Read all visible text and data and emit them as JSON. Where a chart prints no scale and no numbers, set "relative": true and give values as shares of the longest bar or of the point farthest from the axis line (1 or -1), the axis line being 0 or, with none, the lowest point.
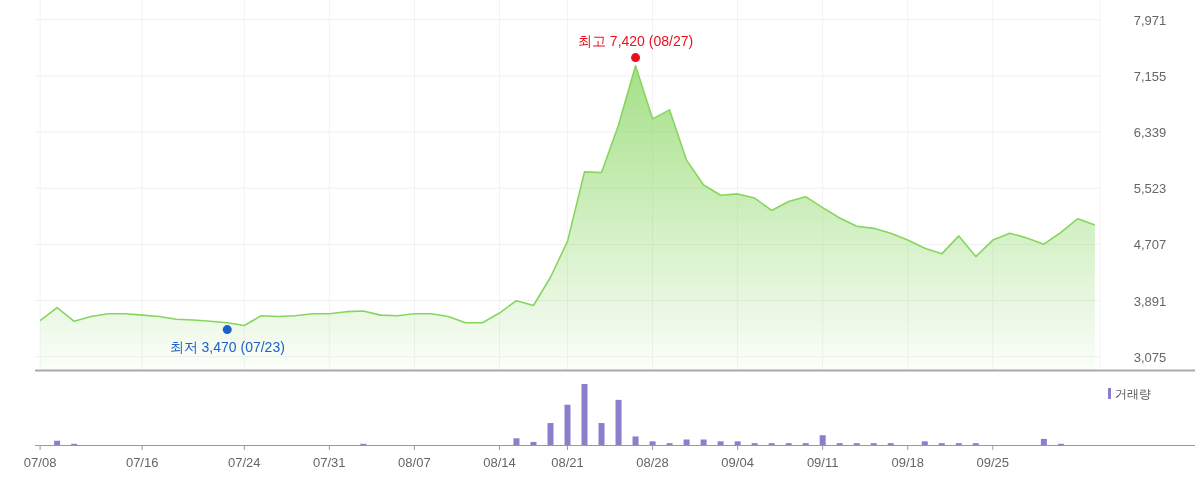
{
  "chart_data": [
    {
      "type": "area",
      "categories": [
        null,
        null,
        null,
        null,
        null,
        null,
        null,
        null,
        null,
        null,
        null,
        null,
        null,
        null,
        null,
        null,
        null,
        null,
        null,
        null,
        null,
        null,
        null,
        null,
        null,
        null,
        null,
        null,
        null,
        null,
        null,
        null,
        null,
        null,
        null,
        null,
        null,
        null,
        null,
        null,
        null,
        null,
        null,
        null,
        null,
        null,
        null,
        null,
        null,
        null,
        null,
        null,
        null,
        null,
        null,
        null,
        null,
        null,
        null,
        null,
        null,
        null,
        null
      ],
      "series": [
        {
          "color": "#86d65e",
          "values": [
            3600,
            3790,
            3590,
            3660,
            3700,
            3700,
            3680,
            3660,
            3620,
            3610,
            3590,
            3570,
            3530,
            3670,
            3660,
            3670,
            3700,
            3700,
            3730,
            3740,
            3680,
            3670,
            3700,
            3700,
            3660,
            3570,
            3570,
            3710,
            3890,
            3820,
            4230,
            4750,
            5760,
            5750,
            6440,
            7300,
            6530,
            6660,
            5930,
            5570,
            5420,
            5440,
            5380,
            5200,
            5330,
            5400,
            5240,
            5090,
            4970,
            4940,
            4870,
            4770,
            4650,
            4570,
            4830,
            4530,
            4770,
            4870,
            4800,
            4710,
            4880,
            5080,
            4990
          ]
        },
        {
          "type": "scatter",
          "color": "#1f5fc8",
          "values": [
            null,
            null,
            null,
            null,
            null,
            null,
            null,
            null,
            null,
            null,
            null,
            3470,
            null,
            null,
            null,
            null,
            null,
            null,
            null,
            null,
            null,
            null,
            null,
            null,
            null,
            null,
            null,
            null,
            null,
            null,
            null,
            null,
            null,
            null,
            null,
            null,
            null,
            null,
            null,
            null,
            null,
            null,
            null,
            null,
            null,
            null,
            null,
            null,
            null,
            null,
            null,
            null,
            null,
            null,
            null,
            null,
            null,
            null,
            null,
            null,
            null,
            null,
            null
          ]
        },
        {
          "type": "scatter",
          "color": "#e8101e",
          "values": [
            null,
            null,
            null,
            null,
            null,
            null,
            null,
            null,
            null,
            null,
            null,
            null,
            null,
            null,
            null,
            null,
            null,
            null,
            null,
            null,
            null,
            null,
            null,
            null,
            null,
            null,
            null,
            null,
            null,
            null,
            null,
            null,
            null,
            null,
            null,
            7420,
            null,
            null,
            null,
            null,
            null,
            null,
            null,
            null,
            null,
            null,
            null,
            null,
            null,
            null,
            null,
            null,
            null,
            null,
            null,
            null,
            null,
            null,
            null,
            null,
            null,
            null,
            null
          ]
        }
      ],
      "ylim": [
        2883,
        8256
      ],
      "yticks": [
        {
          "value": 3075,
          "label": "3,075"
        },
        {
          "value": 3891,
          "label": "3,891"
        },
        {
          "value": 4707,
          "label": "4,707"
        },
        {
          "value": 5523,
          "label": "5,523"
        },
        {
          "value": 6339,
          "label": "6,339"
        },
        {
          "value": 7155,
          "label": "7,155"
        },
        {
          "value": 7971,
          "label": "7,971"
        }
      ],
      "grid": true,
      "tick_labels": "y",
      "annotations": [
        "최저 3,470 (07/23)",
        "최고 7,420 (08/27)"
      ]
    },
    {
      "type": "bar",
      "relative": true,
      "categories": [
        "07/08",
        null,
        null,
        null,
        null,
        null,
        "07/16",
        null,
        null,
        null,
        null,
        null,
        "07/24",
        null,
        null,
        null,
        null,
        "07/31",
        null,
        null,
        null,
        null,
        "08/07",
        null,
        null,
        null,
        null,
        "08/14",
        null,
        null,
        null,
        "08/21",
        null,
        null,
        null,
        null,
        "08/28",
        null,
        null,
        null,
        null,
        "09/04",
        null,
        null,
        null,
        null,
        "09/11",
        null,
        null,
        null,
        null,
        "09/18",
        null,
        null,
        null,
        null,
        "09/25",
        null,
        null,
        null,
        null,
        null,
        null
      ],
      "series": [
        {
          "name": "거래량",
          "color": "#8b7fcc",
          "values": [
            null,
            0.07,
            0.02,
            null,
            null,
            null,
            null,
            null,
            null,
            null,
            null,
            null,
            null,
            null,
            null,
            null,
            null,
            null,
            null,
            0.02,
            null,
            null,
            null,
            null,
            null,
            null,
            null,
            null,
            0.11,
            0.05,
            0.36,
            0.66,
            1,
            0.36,
            0.74,
            0.14,
            0.06,
            0.03,
            0.09,
            0.09,
            0.06,
            0.06,
            0.03,
            0.03,
            0.03,
            0.03,
            0.16,
            0.03,
            0.03,
            0.03,
            0.03,
            null,
            0.06,
            0.03,
            0.03,
            0.03,
            null,
            null,
            null,
            0.1,
            0.02,
            null,
            null
          ]
        }
      ],
      "legend": "top right",
      "tick_labels": "x"
    }
  ]
}
